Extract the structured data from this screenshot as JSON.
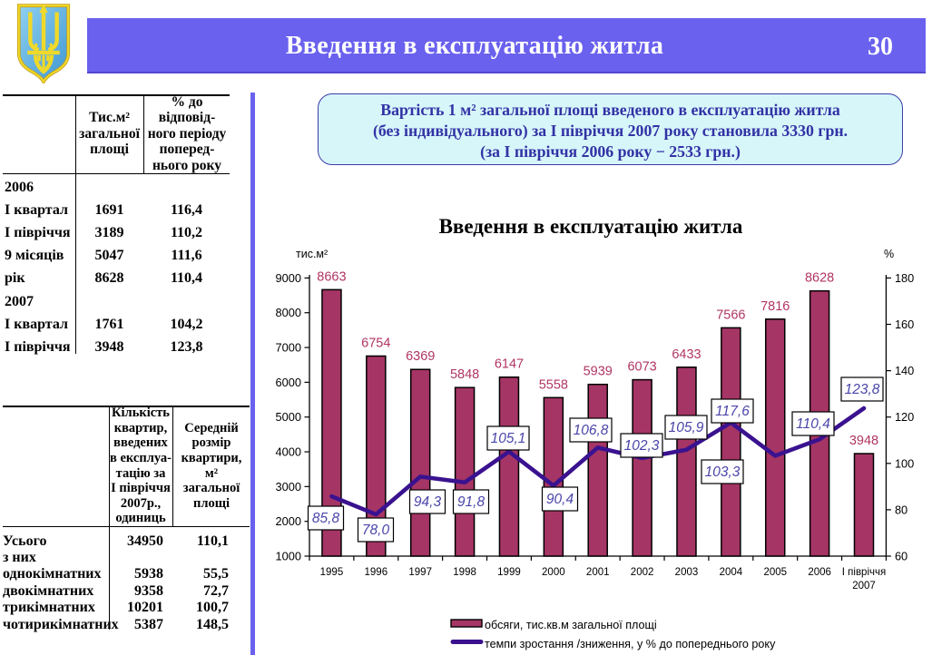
{
  "header": {
    "title": "Введення в експлуатацію житла",
    "page_number": "30",
    "bar_color": "#6a61ee"
  },
  "logo": {
    "name": "coat-of-arms-of-ukraine",
    "shield_color": "#52a4d8",
    "trident_color": "#f0d929"
  },
  "info_box": {
    "fill_color": "#d7f6fa",
    "border_color": "#3c3ca8",
    "text_color": "#3232a5",
    "lines": [
      "Вартість 1 м² загальної площі введеного в експлуатацію житла",
      "(без індивідуального) за І півріччя 2007 року становила 3330 грн.",
      "(за І півріччя 2006 року − 2533 грн.)"
    ]
  },
  "table1": {
    "col2_header_lines": [
      "Тис.м²",
      "загальної",
      "площі"
    ],
    "col3_header_lines": [
      "% до",
      "відповід-",
      "ного періоду",
      "поперед-",
      "нього року"
    ],
    "rows": [
      {
        "label": "2006",
        "area": "",
        "pct": ""
      },
      {
        "label": "І квартал",
        "area": "1691",
        "pct": "116,4"
      },
      {
        "label": "І півріччя",
        "area": "3189",
        "pct": "110,2"
      },
      {
        "label": "9 місяців",
        "area": "5047",
        "pct": "111,6"
      },
      {
        "label": "рік",
        "area": "8628",
        "pct": "110,4"
      },
      {
        "label": "2007",
        "area": "",
        "pct": ""
      },
      {
        "label": "І квартал",
        "area": "1761",
        "pct": "104,2"
      },
      {
        "label": "І півріччя",
        "area": "3948",
        "pct": "123,8"
      }
    ]
  },
  "table2": {
    "col2_header_lines": [
      "Кількість",
      "квартир,",
      "введених",
      "в експлуа-",
      "тацію за",
      "І півріччя",
      "2007р.,",
      "одиниць"
    ],
    "col3_header_lines": [
      "Середній",
      "розмір",
      "квартири,",
      "м²",
      "загальної",
      "площі"
    ],
    "rows": [
      {
        "label": "Усього",
        "count": "34950",
        "size": "110,1"
      },
      {
        "label": "з них",
        "count": "",
        "size": ""
      },
      {
        "label": "однокімнатних",
        "count": "5938",
        "size": "55,5"
      },
      {
        "label": "двокімнатних",
        "count": "9358",
        "size": "72,7"
      },
      {
        "label": "трикімнатних",
        "count": "10201",
        "size": "100,7"
      },
      {
        "label": "чотирикімнатних",
        "count": "5387",
        "size": "148,5"
      }
    ]
  },
  "chart_data": {
    "type": "bar+line",
    "title": "Введення в експлуатацію житла",
    "categories": [
      "1995",
      "1996",
      "1997",
      "1998",
      "1999",
      "2000",
      "2001",
      "2002",
      "2003",
      "2004",
      "2005",
      "2006",
      "І півріччя 2007"
    ],
    "series": [
      {
        "name": "обсяги, тис.кв.м загальної площі",
        "type": "bar",
        "axis": "left",
        "color": "#a53565",
        "label_color": "#b03563",
        "values": [
          8663,
          6754,
          6369,
          5848,
          6147,
          5558,
          5939,
          6073,
          6433,
          7566,
          7816,
          8628,
          3948
        ]
      },
      {
        "name": "темпи зростання /зниження, у % до попереднього року",
        "type": "line",
        "axis": "right",
        "color": "#3a128f",
        "label_color": "#4b46aa",
        "values": [
          85.8,
          78.0,
          94.3,
          91.8,
          105.1,
          90.4,
          106.8,
          102.3,
          105.9,
          117.6,
          103.3,
          110.4,
          123.8
        ]
      }
    ],
    "left_axis": {
      "title": "тис.м²",
      "min": 1000,
      "max": 9000,
      "step": 1000
    },
    "right_axis": {
      "title": "%",
      "min": 60,
      "max": 180,
      "step": 20
    },
    "gridlines": false,
    "legend_position": "bottom"
  }
}
